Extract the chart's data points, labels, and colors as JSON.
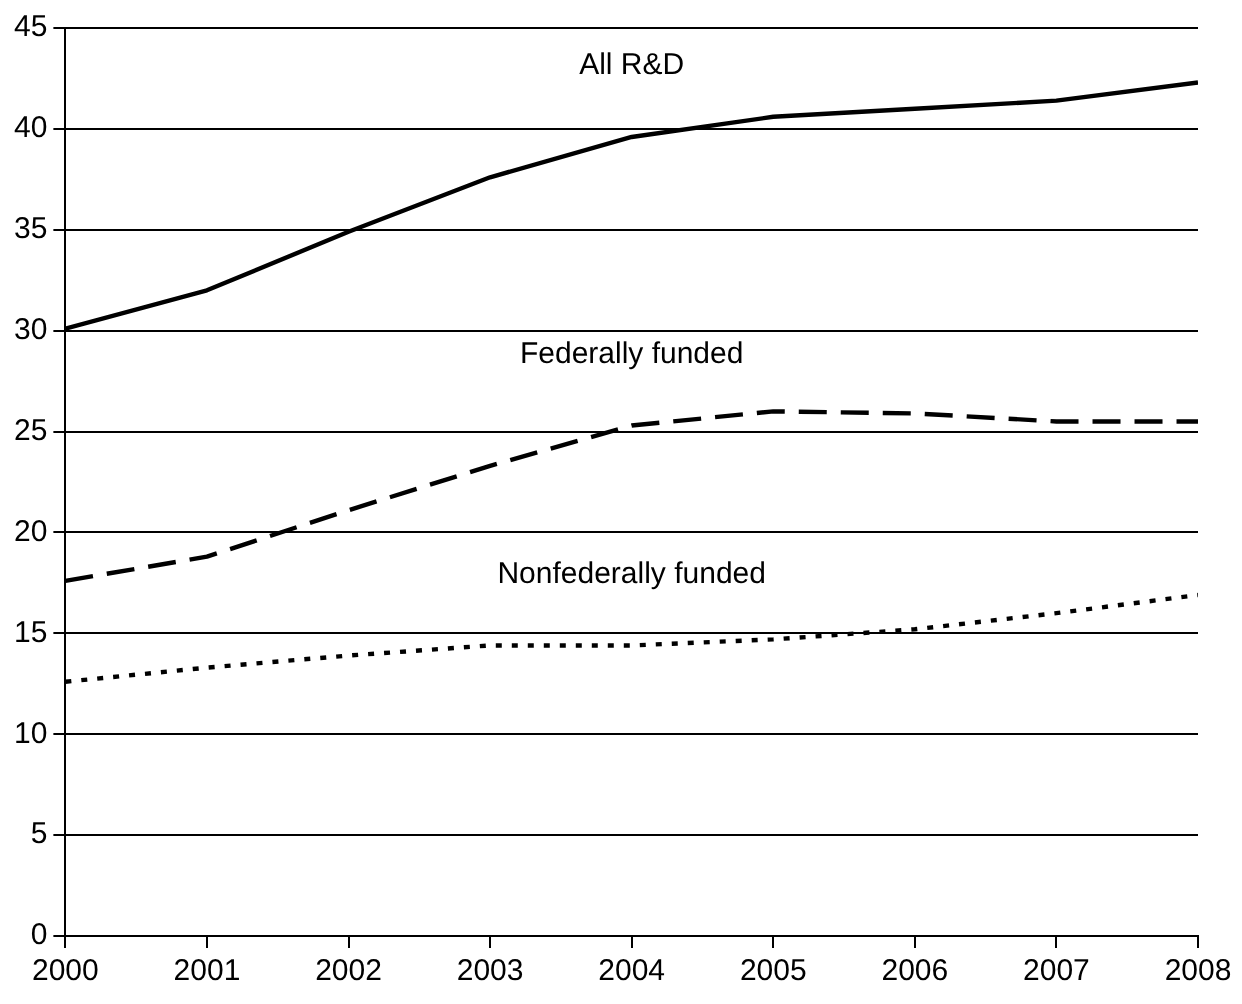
{
  "chart_data": {
    "type": "line",
    "x": [
      2000,
      2001,
      2002,
      2003,
      2004,
      2005,
      2006,
      2007,
      2008
    ],
    "series": [
      {
        "name": "All R&D",
        "color": "#000000",
        "line_style": "solid",
        "values": [
          30.1,
          32.0,
          34.9,
          37.6,
          39.6,
          40.6,
          41.0,
          41.4,
          42.3
        ]
      },
      {
        "name": "Federally funded",
        "color": "#000000",
        "line_style": "dashed",
        "values": [
          17.6,
          18.8,
          21.1,
          23.3,
          25.3,
          26.0,
          25.9,
          25.5,
          25.5
        ]
      },
      {
        "name": "Nonfederally funded",
        "color": "#000000",
        "line_style": "dotted",
        "values": [
          12.6,
          13.3,
          13.9,
          14.4,
          14.4,
          14.7,
          15.2,
          16.0,
          16.9
        ]
      }
    ],
    "xlim": [
      2000,
      2008
    ],
    "xticks": [
      2000,
      2001,
      2002,
      2003,
      2004,
      2005,
      2006,
      2007,
      2008
    ],
    "ylim": [
      0,
      45
    ],
    "yticks": [
      0,
      5,
      10,
      15,
      20,
      25,
      30,
      35,
      40,
      45
    ],
    "grid": "y",
    "legend": false,
    "marker": "none"
  }
}
